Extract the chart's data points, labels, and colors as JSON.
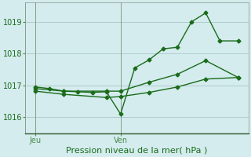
{
  "title": "Pression niveau de la mer( hPa )",
  "background_color": "#d4ecee",
  "grid_color": "#b0cccc",
  "line_color": "#1a6b1a",
  "spine_color": "#4a8a4a",
  "ylim": [
    1015.5,
    1019.6
  ],
  "yticks": [
    1016,
    1017,
    1018,
    1019
  ],
  "xlim": [
    -0.05,
    1.05
  ],
  "vline_positions": [
    0.0,
    0.42
  ],
  "xtick_positions": [
    0.0,
    0.42
  ],
  "xtick_labels": [
    "Jeu",
    "Ven"
  ],
  "series1_x": [
    0.0,
    0.07,
    0.14,
    0.21,
    0.28,
    0.35,
    0.42,
    0.49,
    0.56,
    0.63,
    0.7,
    0.77,
    0.84,
    0.91,
    1.0
  ],
  "series1_y": [
    1016.95,
    1016.9,
    1016.82,
    1016.8,
    1016.78,
    1016.8,
    1016.1,
    1017.55,
    1017.8,
    1018.15,
    1018.2,
    1019.0,
    1019.28,
    1018.4,
    1018.4
  ],
  "series2_x": [
    0.0,
    0.14,
    0.35,
    0.42,
    0.56,
    0.7,
    0.84,
    1.0
  ],
  "series2_y": [
    1016.9,
    1016.82,
    1016.82,
    1016.82,
    1017.1,
    1017.35,
    1017.78,
    1017.25
  ],
  "series3_x": [
    0.0,
    0.14,
    0.35,
    0.42,
    0.56,
    0.7,
    0.84,
    1.0
  ],
  "series3_y": [
    1016.82,
    1016.72,
    1016.62,
    1016.65,
    1016.78,
    1016.95,
    1017.2,
    1017.25
  ],
  "xlabel_fontsize": 8,
  "tick_fontsize": 7,
  "line_width": 1.0,
  "marker": "D",
  "marker_size": 2.5
}
